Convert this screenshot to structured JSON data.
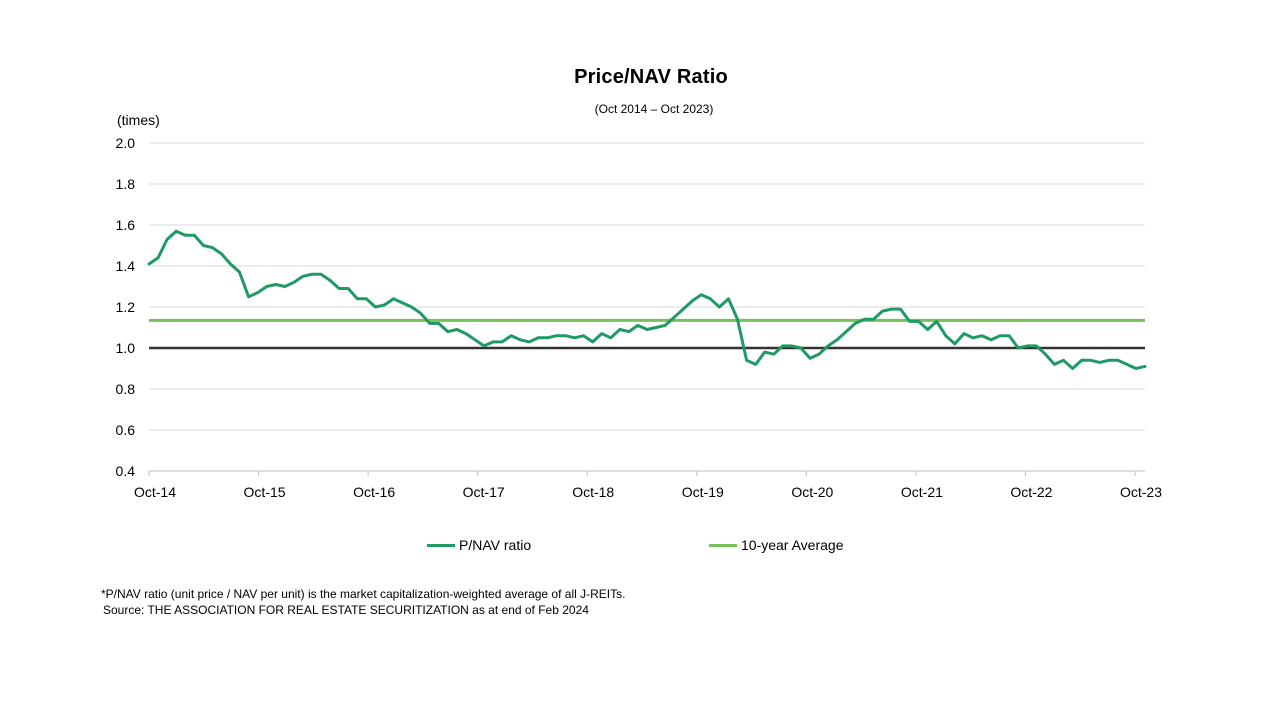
{
  "chart_data": {
    "type": "line",
    "title": "Price/NAV  Ratio",
    "subtitle": "(Oct 2014 – Oct 2023)",
    "ylabel": "(times)",
    "xlabel": "",
    "ylim": [
      0.4,
      2.0
    ],
    "yticks": [
      "2.0",
      "1.8",
      "1.6",
      "1.4",
      "1.2",
      "1.0",
      "0.8",
      "0.6",
      "0.4"
    ],
    "xticks": [
      "Oct-14",
      "Oct-15",
      "Oct-16",
      "Oct-17",
      "Oct-18",
      "Oct-19",
      "Oct-20",
      "Oct-21",
      "Oct-22",
      "Oct-23"
    ],
    "grid": true,
    "legend_position": "bottom",
    "x_start": "Oct-14",
    "x_end": "Oct-23",
    "series": [
      {
        "name": "P/NAV ratio",
        "color": "#1f9a63",
        "values": [
          1.41,
          1.44,
          1.53,
          1.57,
          1.55,
          1.55,
          1.5,
          1.49,
          1.46,
          1.41,
          1.37,
          1.25,
          1.27,
          1.3,
          1.31,
          1.3,
          1.32,
          1.35,
          1.36,
          1.36,
          1.33,
          1.29,
          1.29,
          1.24,
          1.24,
          1.2,
          1.21,
          1.24,
          1.22,
          1.2,
          1.17,
          1.12,
          1.12,
          1.08,
          1.09,
          1.07,
          1.04,
          1.01,
          1.03,
          1.03,
          1.06,
          1.04,
          1.03,
          1.05,
          1.05,
          1.06,
          1.06,
          1.05,
          1.06,
          1.03,
          1.07,
          1.05,
          1.09,
          1.08,
          1.11,
          1.09,
          1.1,
          1.11,
          1.15,
          1.19,
          1.23,
          1.26,
          1.24,
          1.2,
          1.24,
          1.14,
          0.94,
          0.92,
          0.98,
          0.97,
          1.01,
          1.01,
          1.0,
          0.95,
          0.97,
          1.01,
          1.04,
          1.08,
          1.12,
          1.14,
          1.14,
          1.18,
          1.19,
          1.19,
          1.13,
          1.13,
          1.09,
          1.13,
          1.06,
          1.02,
          1.07,
          1.05,
          1.06,
          1.04,
          1.06,
          1.06,
          1.0,
          1.01,
          1.01,
          0.97,
          0.92,
          0.94,
          0.9,
          0.94,
          0.94,
          0.93,
          0.94,
          0.94,
          0.92,
          0.9,
          0.91
        ]
      },
      {
        "name": "10-year Average",
        "color": "#77c15a",
        "values": [
          1.135,
          1.135
        ]
      }
    ],
    "reference_line": {
      "value": 1.0,
      "color": "#333333"
    }
  },
  "legend": {
    "pnav_label": "P/NAV ratio",
    "avg_label": "10-year Average"
  },
  "footnote": "*P/NAV  ratio (unit price / NAV  per unit) is the market capitalization-weighted average of all J-REITs.",
  "source": "Source: THE ASSOCIATION  FOR REAL ESTATE  SECURITIZATION  as at end of Feb 2024"
}
